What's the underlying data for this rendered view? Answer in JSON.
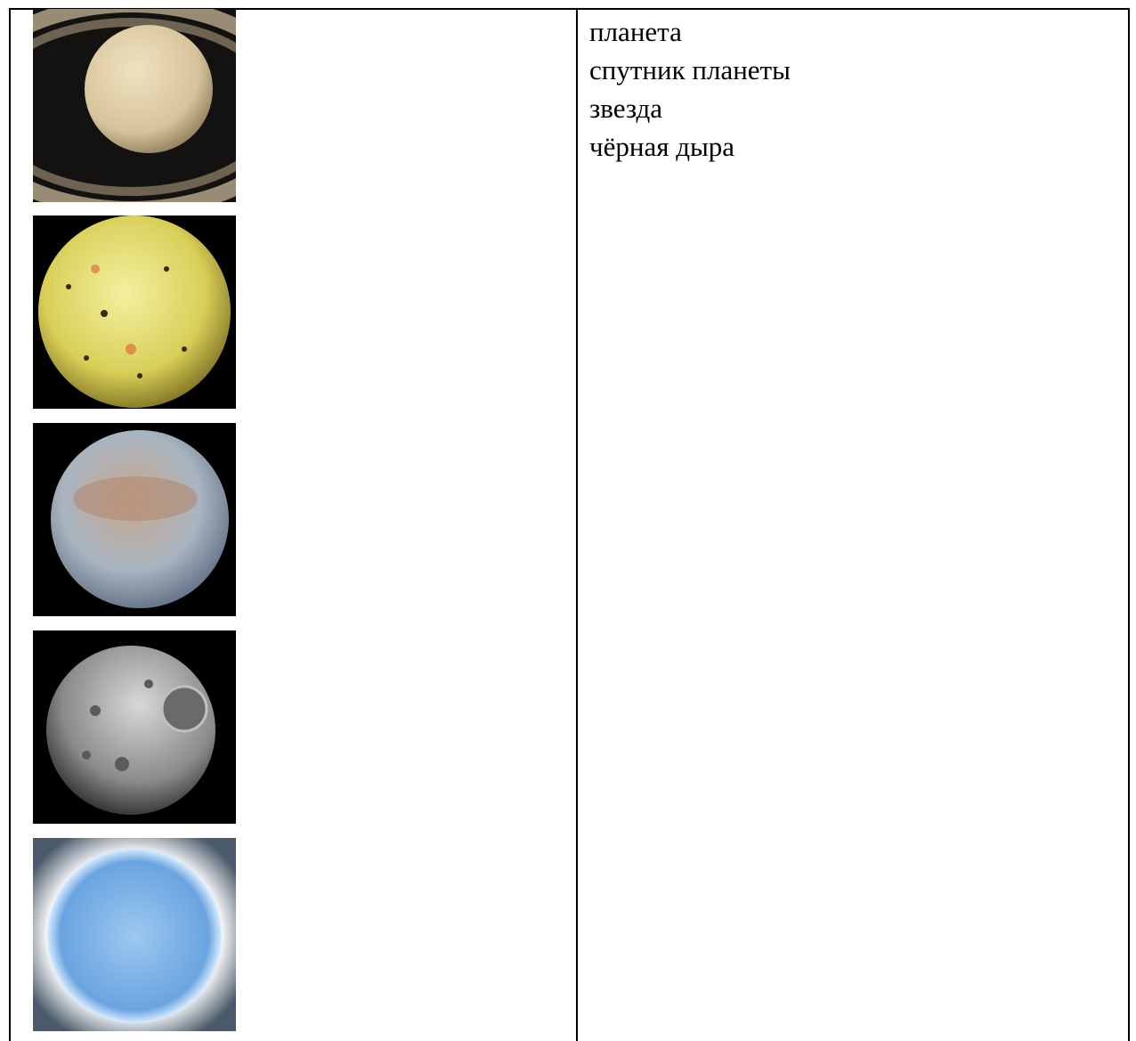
{
  "table": {
    "options": [
      "планета",
      "спутник планеты",
      "звезда",
      "чёрная дыра"
    ]
  }
}
